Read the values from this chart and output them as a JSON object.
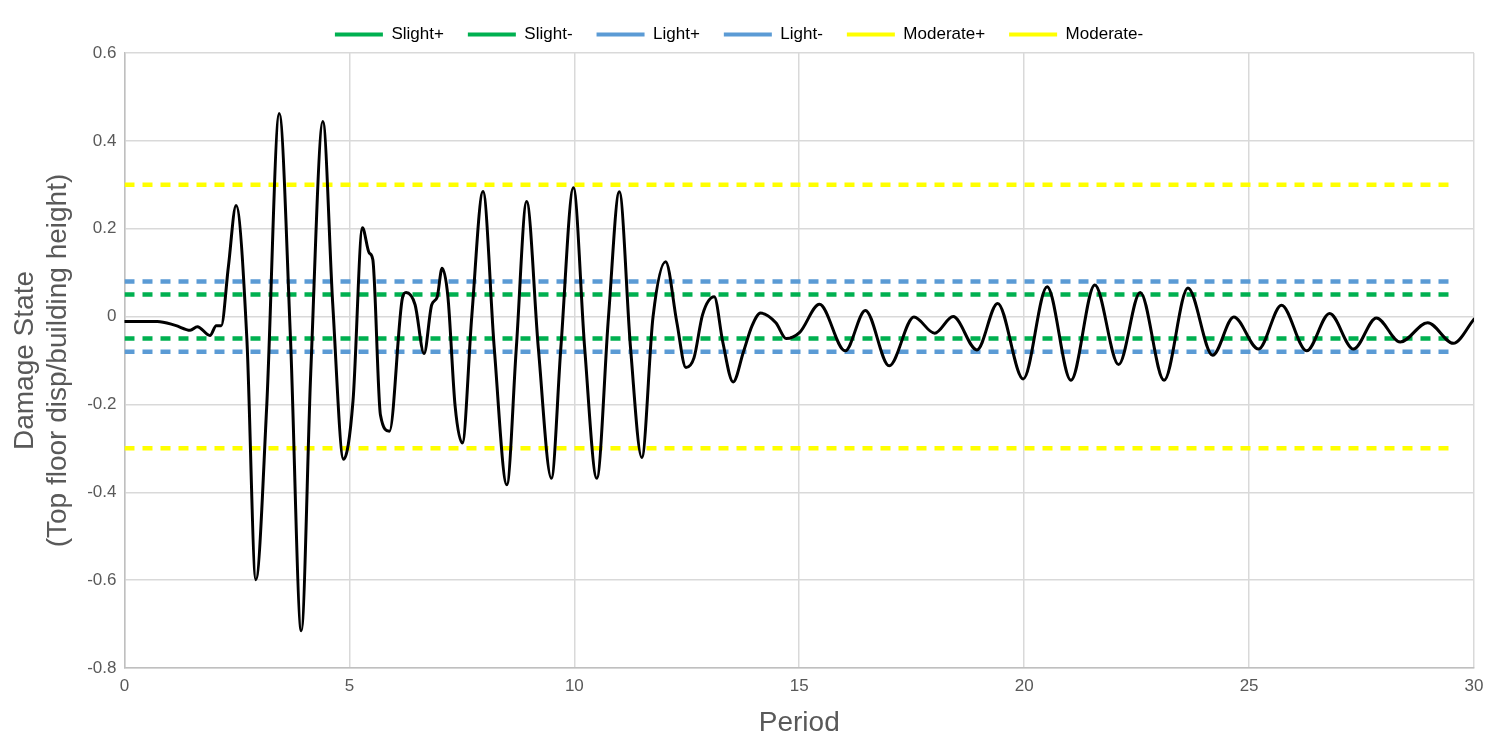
{
  "chart_data": {
    "type": "line",
    "xlabel": "Period",
    "ylabel": "Damage State\n(Top floor disp/building height)",
    "xlim": [
      0,
      30
    ],
    "xticks": [
      0,
      5,
      10,
      15,
      20,
      25,
      30
    ],
    "ylim": [
      -0.8,
      0.6
    ],
    "yticks": [
      -0.8,
      -0.6,
      -0.4,
      -0.2,
      0,
      0.2,
      0.4,
      0.6
    ],
    "grid": true,
    "legend": "top",
    "marker": "none",
    "series": [
      {
        "name": "Slight+",
        "color": "#00b050",
        "line_style": "dashed",
        "x": [
          0,
          29.5
        ],
        "values": [
          0.05,
          0.05
        ]
      },
      {
        "name": "Slight-",
        "color": "#00b050",
        "line_style": "dashed",
        "x": [
          0,
          29.5
        ],
        "values": [
          -0.05,
          -0.05
        ]
      },
      {
        "name": "Light+",
        "color": "#5b9bd5",
        "line_style": "dashed",
        "x": [
          0,
          29.5
        ],
        "values": [
          0.08,
          0.08
        ]
      },
      {
        "name": "Light-",
        "color": "#5b9bd5",
        "line_style": "dashed",
        "x": [
          0,
          29.5
        ],
        "values": [
          -0.08,
          -0.08
        ]
      },
      {
        "name": "Moderate+",
        "color": "#ffff00",
        "line_style": "dashed",
        "x": [
          0,
          29.5
        ],
        "values": [
          0.3,
          0.3
        ]
      },
      {
        "name": "Moderate-",
        "color": "#ffff00",
        "line_style": "dashed",
        "x": [
          0,
          29.5
        ],
        "values": [
          -0.3,
          -0.3
        ]
      },
      {
        "color": "#000000",
        "line_style": "solid",
        "x": [
          0,
          0.73,
          1.13,
          1.46,
          1.62,
          1.9,
          2.04,
          2.15,
          2.31,
          2.48,
          2.72,
          2.92,
          3.16,
          3.44,
          3.69,
          3.93,
          4.14,
          4.41,
          4.63,
          4.87,
          5.08,
          5.29,
          5.44,
          5.52,
          5.69,
          5.89,
          6.18,
          6.26,
          6.46,
          6.66,
          6.83,
          6.95,
          7.06,
          7.19,
          7.35,
          7.51,
          7.72,
          7.97,
          8.22,
          8.5,
          8.71,
          8.94,
          9.2,
          9.49,
          9.7,
          9.98,
          10.23,
          10.5,
          10.76,
          11.0,
          11.25,
          11.5,
          11.75,
          12.03,
          12.28,
          12.48,
          12.66,
          12.85,
          13.11,
          13.3,
          13.53,
          13.76,
          13.95,
          14.14,
          14.48,
          14.71,
          15.01,
          15.45,
          16.02,
          16.47,
          17.0,
          17.55,
          18.01,
          18.42,
          18.95,
          19.41,
          19.98,
          20.51,
          21.04,
          21.57,
          22.1,
          22.58,
          23.11,
          23.64,
          24.19,
          24.66,
          25.21,
          25.72,
          26.28,
          26.79,
          27.32,
          27.83,
          28.36,
          28.97,
          29.54,
          30
        ],
        "values": [
          -0.011,
          -0.011,
          -0.02,
          -0.031,
          -0.023,
          -0.043,
          -0.021,
          -0.021,
          0.114,
          0.253,
          -0.05,
          -0.599,
          -0.208,
          0.462,
          -0.05,
          -0.715,
          -0.129,
          0.444,
          0.027,
          -0.325,
          -0.192,
          0.202,
          0.145,
          0.13,
          -0.224,
          -0.261,
          0.043,
          0.055,
          0.027,
          -0.084,
          0.027,
          0.044,
          0.11,
          0.045,
          -0.204,
          -0.288,
          0,
          0.285,
          -0.072,
          -0.383,
          -0.072,
          0.262,
          -0.072,
          -0.368,
          -0.072,
          0.293,
          -0.072,
          -0.368,
          0,
          0.284,
          -0.072,
          -0.321,
          0,
          0.125,
          -0.014,
          -0.116,
          -0.094,
          0.004,
          0.045,
          -0.058,
          -0.149,
          -0.08,
          -0.021,
          0.008,
          -0.014,
          -0.05,
          -0.036,
          0.028,
          -0.078,
          0.014,
          -0.112,
          -0.001,
          -0.038,
          0,
          -0.076,
          0.03,
          -0.142,
          0.068,
          -0.145,
          0.072,
          -0.109,
          0.055,
          -0.145,
          0.065,
          -0.088,
          -0.001,
          -0.074,
          0.026,
          -0.078,
          0.007,
          -0.074,
          -0.003,
          -0.058,
          -0.014,
          -0.061,
          -0.006
        ]
      }
    ]
  }
}
